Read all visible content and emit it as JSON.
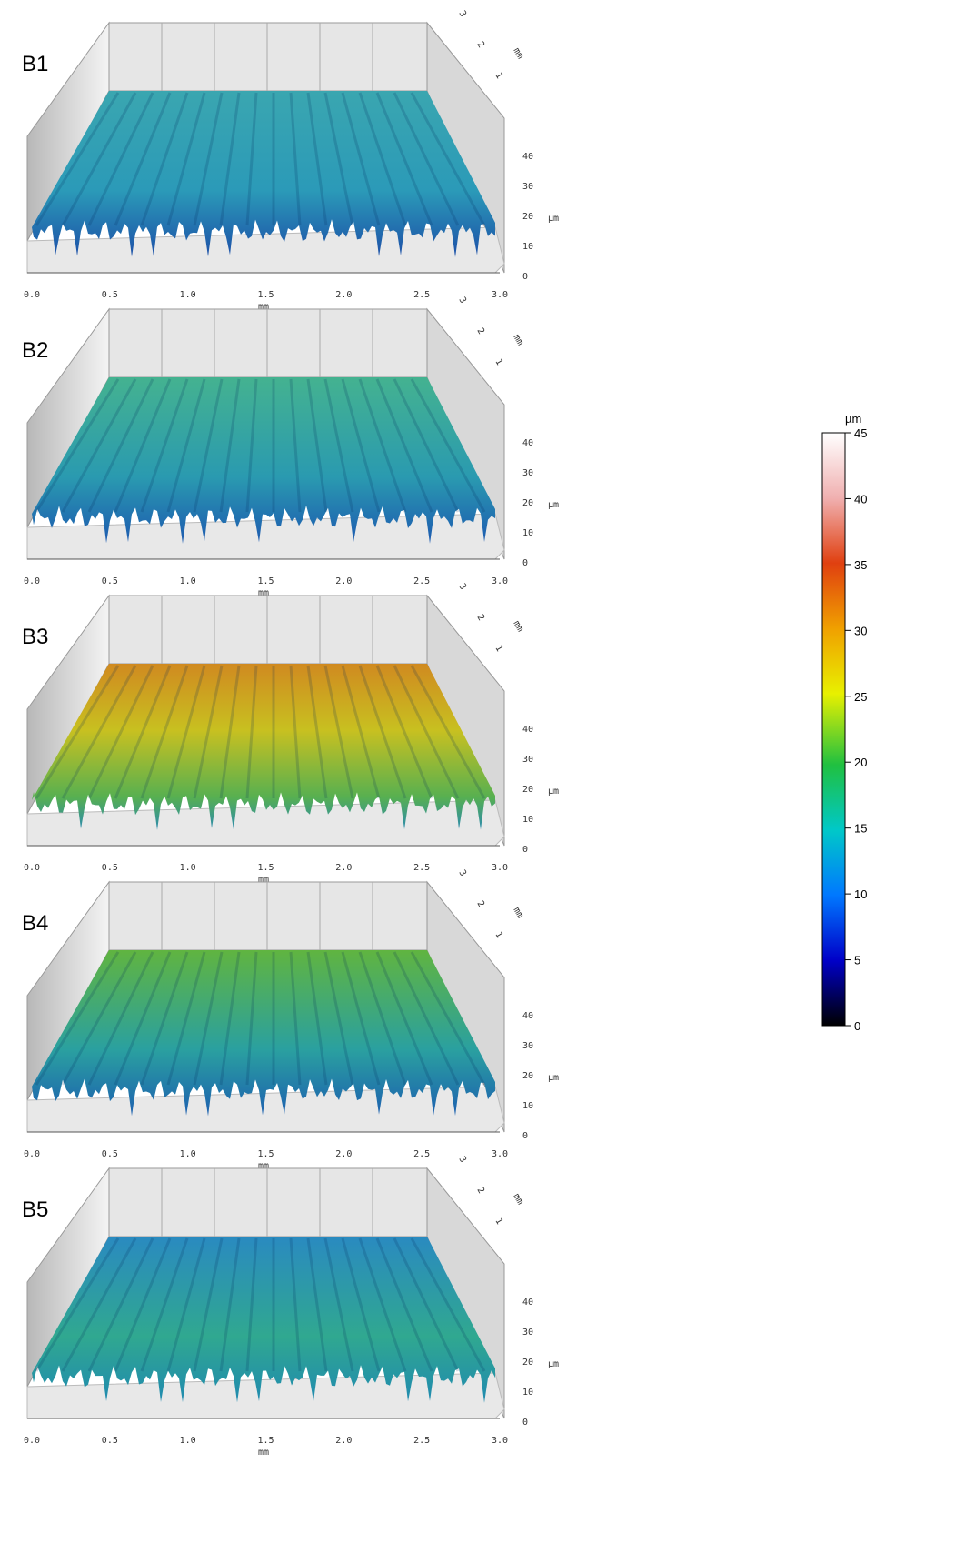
{
  "panels": [
    {
      "label": "B1"
    },
    {
      "label": "B2"
    },
    {
      "label": "B3"
    },
    {
      "label": "B4"
    },
    {
      "label": "B5"
    }
  ],
  "axes": {
    "x_ticks": [
      "0.0",
      "0.5",
      "1.0",
      "1.5",
      "2.0",
      "2.5",
      "3.0"
    ],
    "x_unit": "mm",
    "y_ticks": [
      "1",
      "2",
      "3"
    ],
    "y_unit": "mm",
    "z_ticks": [
      "0",
      "10",
      "20",
      "30",
      "40"
    ],
    "z_unit": "µm"
  },
  "colorbar": {
    "unit": "µm",
    "ticks": [
      45,
      40,
      35,
      30,
      25,
      20,
      15,
      10,
      5,
      0
    ],
    "lim": [
      0,
      45
    ]
  }
}
